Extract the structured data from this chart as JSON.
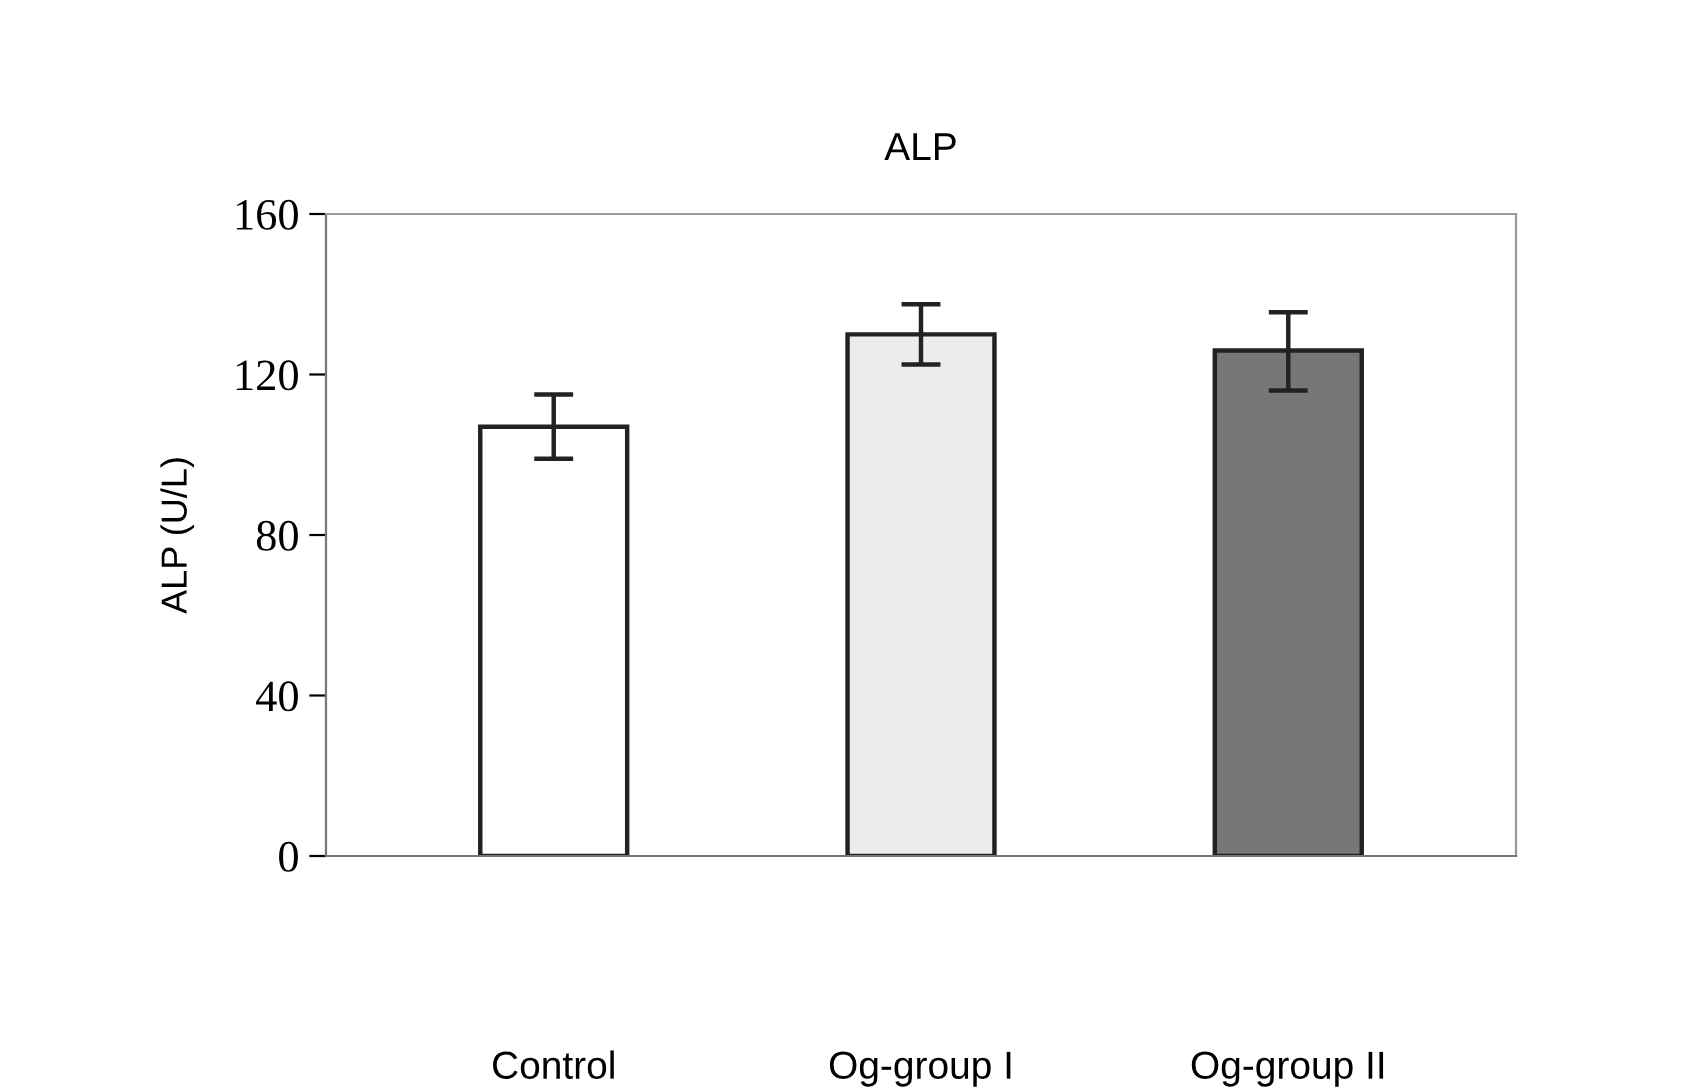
{
  "chart_data": {
    "type": "bar",
    "title": "ALP",
    "ylabel": "ALP (U/L)",
    "categories": [
      "Control",
      "Og-group I",
      "Og-group II"
    ],
    "values": [
      107,
      130,
      126
    ],
    "colors": [
      "#ffffff",
      "#ececec",
      "#777777"
    ],
    "errors": [
      [
        99,
        115
      ],
      [
        122.5,
        137.5
      ],
      [
        116,
        135.5
      ]
    ],
    "ylim": [
      0,
      160
    ],
    "yticks": [
      0,
      40,
      80,
      120,
      160
    ],
    "grid": false,
    "legend": false
  }
}
